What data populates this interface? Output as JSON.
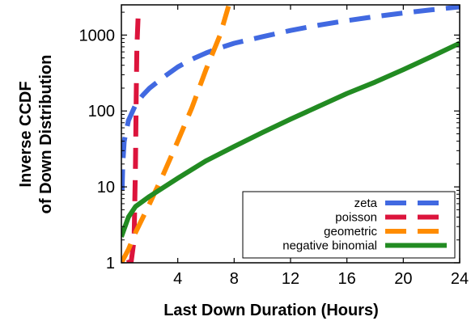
{
  "chart_data": {
    "type": "line",
    "xlabel": "Last Down Duration (Hours)",
    "ylabel_lines": [
      "Inverse CCDF",
      "of Down Distribution"
    ],
    "xlim": [
      0,
      24
    ],
    "ylim": [
      1,
      2500
    ],
    "yscale": "log",
    "xticks": [
      4,
      8,
      12,
      16,
      20,
      24
    ],
    "xtick_labels": [
      "4",
      "8",
      "12",
      "16",
      "20",
      "24"
    ],
    "yticks": [
      1,
      10,
      100,
      1000
    ],
    "ytick_labels": [
      "1",
      "10",
      "100",
      "1000"
    ],
    "grid": false,
    "legend_position": "bottom-right",
    "series": [
      {
        "name": "zeta",
        "color": "#4169e1",
        "dash": "dashed",
        "points": [
          [
            0.05,
            9
          ],
          [
            0.1,
            20
          ],
          [
            0.2,
            40
          ],
          [
            0.5,
            75
          ],
          [
            1,
            120
          ],
          [
            1.5,
            160
          ],
          [
            2,
            200
          ],
          [
            3,
            280
          ],
          [
            4,
            380
          ],
          [
            5,
            480
          ],
          [
            6,
            580
          ],
          [
            7,
            680
          ],
          [
            8,
            780
          ],
          [
            10,
            950
          ],
          [
            12,
            1150
          ],
          [
            14,
            1350
          ],
          [
            16,
            1550
          ],
          [
            18,
            1750
          ],
          [
            20,
            1950
          ],
          [
            22,
            2150
          ],
          [
            24,
            2350
          ]
        ]
      },
      {
        "name": "poisson",
        "color": "#dc143c",
        "dash": "dashed",
        "points": [
          [
            0.4,
            1
          ],
          [
            0.7,
            1.05
          ],
          [
            0.9,
            2
          ],
          [
            1.0,
            20
          ],
          [
            1.05,
            150
          ],
          [
            1.1,
            700
          ],
          [
            1.2,
            2000
          ]
        ]
      },
      {
        "name": "geometric",
        "color": "#ff8c00",
        "dash": "dashed",
        "points": [
          [
            0,
            1
          ],
          [
            0.5,
            1.5
          ],
          [
            1,
            2.5
          ],
          [
            2,
            6
          ],
          [
            3,
            15
          ],
          [
            4,
            40
          ],
          [
            5,
            110
          ],
          [
            6,
            350
          ],
          [
            7,
            1000
          ],
          [
            7.6,
            2400
          ]
        ]
      },
      {
        "name": "negative binomial",
        "color": "#228b22",
        "dash": "solid",
        "points": [
          [
            0,
            2.2
          ],
          [
            0.5,
            4
          ],
          [
            1,
            5.5
          ],
          [
            2,
            7.5
          ],
          [
            4,
            13
          ],
          [
            6,
            22
          ],
          [
            8,
            34
          ],
          [
            10,
            52
          ],
          [
            12,
            78
          ],
          [
            14,
            115
          ],
          [
            16,
            170
          ],
          [
            18,
            240
          ],
          [
            20,
            350
          ],
          [
            22,
            520
          ],
          [
            24,
            780
          ]
        ]
      }
    ]
  }
}
